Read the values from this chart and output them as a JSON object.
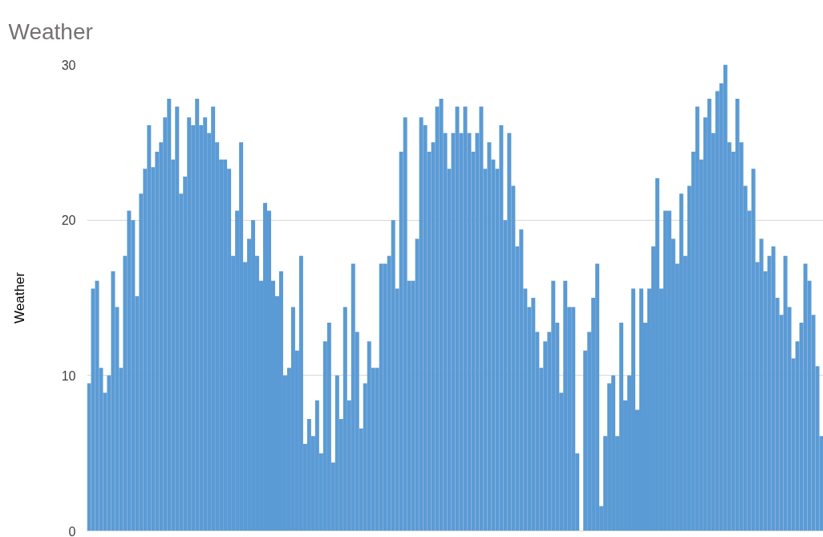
{
  "chart_data": {
    "type": "bar",
    "title": "Weather",
    "ylabel": "Weather",
    "categories": [
      null,
      null,
      null,
      null,
      null,
      null,
      null,
      null,
      null,
      null,
      null,
      null,
      null,
      null,
      null,
      null,
      null,
      null,
      null,
      null,
      null,
      null,
      null,
      null,
      null,
      null,
      null,
      null,
      null,
      null,
      null,
      null,
      null,
      null,
      null,
      null,
      null,
      null,
      null,
      null,
      null,
      null,
      null,
      null,
      null,
      null,
      null,
      null,
      null,
      null,
      null,
      null,
      null,
      null,
      null,
      null,
      null,
      null,
      null,
      null,
      null,
      null,
      null,
      null,
      null,
      null,
      null,
      null,
      null,
      null,
      null,
      null,
      null,
      null,
      null,
      null,
      null,
      null,
      null,
      null,
      null,
      null,
      null,
      null,
      null,
      null,
      null,
      null,
      null,
      null,
      null,
      null,
      null,
      null,
      null,
      null,
      null,
      null,
      null,
      null,
      null,
      null,
      null,
      null,
      null,
      null,
      null,
      null,
      null,
      null,
      null,
      null,
      null,
      null,
      null,
      null,
      null,
      null,
      null,
      null,
      null,
      null,
      null,
      null,
      null,
      null,
      null,
      null,
      null,
      null,
      null,
      null,
      null,
      null,
      null,
      null,
      null,
      null,
      null,
      null,
      null,
      null,
      null,
      null,
      null,
      null,
      null,
      null,
      null,
      null,
      null,
      null,
      null,
      null,
      null,
      null,
      null,
      null,
      null,
      null,
      null,
      null,
      null,
      null,
      null,
      null,
      null,
      null,
      null,
      null,
      null,
      null,
      null,
      null,
      null,
      null,
      null,
      null,
      null,
      null,
      null,
      null,
      null,
      null
    ],
    "values": [
      9.5,
      15.6,
      16.1,
      10.5,
      8.9,
      10,
      16.7,
      14.4,
      10.5,
      17.7,
      20.6,
      20,
      15.1,
      21.7,
      23.3,
      26.1,
      23.4,
      24.4,
      25,
      26.6,
      27.8,
      23.9,
      27.3,
      21.7,
      22.8,
      26.6,
      26.1,
      27.8,
      26.1,
      26.6,
      25.6,
      27.3,
      25,
      23.9,
      23.9,
      23.3,
      17.7,
      20.6,
      25,
      17.3,
      18.8,
      20,
      17.7,
      16.1,
      21.1,
      20.6,
      16.1,
      15.1,
      16.7,
      10,
      10.5,
      14.4,
      11.6,
      17.7,
      5.6,
      7.2,
      6.1,
      8.4,
      5,
      12.2,
      13.4,
      4.4,
      10,
      7.2,
      14.4,
      8.4,
      17.2,
      12.8,
      6.6,
      9.5,
      12.2,
      10.5,
      10.5,
      17.2,
      17.2,
      17.7,
      20,
      15.6,
      24.4,
      26.6,
      16.1,
      16.1,
      18.8,
      26.6,
      26.1,
      24.4,
      25,
      27.3,
      27.8,
      25.6,
      23.3,
      25.6,
      27.3,
      25.6,
      27.3,
      25.6,
      24.4,
      25.6,
      27.3,
      23.3,
      25,
      23.9,
      23.3,
      26.1,
      20,
      25.6,
      22.2,
      18.3,
      19.4,
      15.6,
      14.4,
      15,
      12.8,
      10.5,
      12.2,
      12.8,
      16.1,
      13.4,
      8.9,
      16.1,
      14.4,
      14.4,
      5,
      null,
      11.6,
      12.8,
      15,
      17.2,
      1.6,
      6.1,
      9.5,
      10,
      6.1,
      13.4,
      8.4,
      10,
      15.6,
      7.8,
      15.6,
      13.4,
      15.6,
      18.3,
      22.7,
      15.6,
      20.6,
      20.6,
      18.8,
      17.2,
      21.7,
      17.7,
      22.2,
      24.4,
      27.3,
      23.9,
      26.6,
      27.8,
      25.6,
      28.3,
      28.8,
      30,
      25,
      24.4,
      27.8,
      25,
      22.2,
      20.6,
      23.3,
      17.3,
      18.8,
      16.7,
      17.7,
      18.3,
      15,
      13.9,
      17.7,
      14.4,
      11.1,
      12.2,
      13.4,
      17.2,
      16.1,
      13.9,
      10.6,
      6.1
    ],
    "color": "#5b9bd5",
    "ylim": [
      0,
      30
    ],
    "yticks": [
      0,
      10,
      20,
      30
    ],
    "grid": "y",
    "tick_labels": "y"
  }
}
